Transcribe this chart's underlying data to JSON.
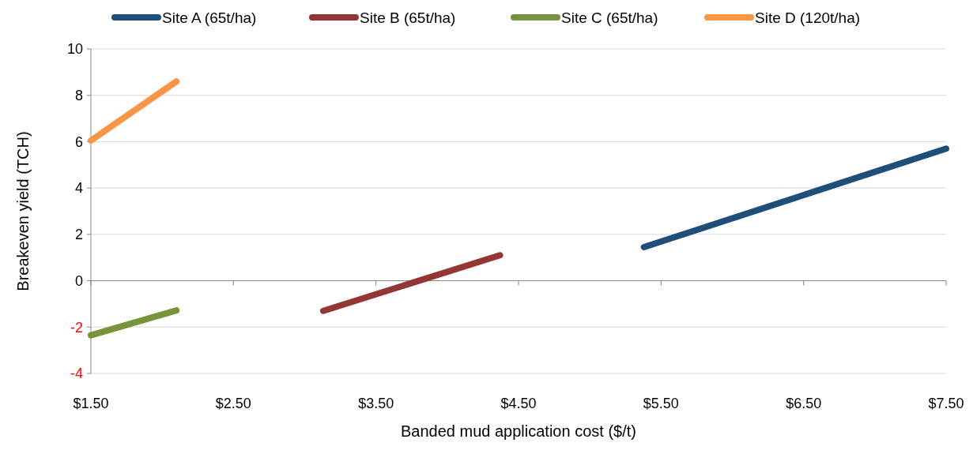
{
  "chart_data": {
    "type": "line",
    "xlabel": "Banded mud application cost ($/t)",
    "ylabel": "Breakeven yield (TCH)",
    "xlim": [
      1.5,
      7.5
    ],
    "xticks": [
      {
        "value": 1.5,
        "label": "$1.50"
      },
      {
        "value": 2.5,
        "label": "$2.50"
      },
      {
        "value": 3.5,
        "label": "$3.50"
      },
      {
        "value": 4.5,
        "label": "$4.50"
      },
      {
        "value": 5.5,
        "label": "$5.50"
      },
      {
        "value": 6.5,
        "label": "$6.50"
      },
      {
        "value": 7.5,
        "label": "$7.50"
      }
    ],
    "ylim": [
      -4,
      10
    ],
    "yticks": [
      -4,
      -2,
      0,
      2,
      4,
      6,
      8,
      10
    ],
    "grid": "y",
    "legend": "top",
    "marker": "none",
    "line_style": "solid",
    "series": [
      {
        "name": "Site A (65t/ha)",
        "color": "#1f4e79",
        "x": [
          5.38,
          7.5
        ],
        "values": [
          1.45,
          5.7
        ]
      },
      {
        "name": "Site B (65t/ha)",
        "color": "#943634",
        "x": [
          3.13,
          4.37
        ],
        "values": [
          -1.3,
          1.1
        ]
      },
      {
        "name": "Site C (65t/ha)",
        "color": "#77933c",
        "x": [
          1.5,
          2.1
        ],
        "values": [
          -2.35,
          -1.28
        ]
      },
      {
        "name": "Site D (120t/ha)",
        "color": "#f79646",
        "x": [
          1.5,
          2.1
        ],
        "values": [
          6.05,
          8.6
        ]
      }
    ]
  }
}
